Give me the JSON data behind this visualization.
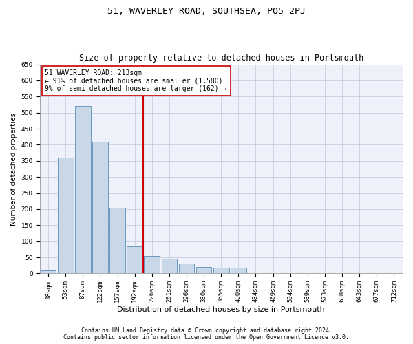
{
  "title": "51, WAVERLEY ROAD, SOUTHSEA, PO5 2PJ",
  "subtitle": "Size of property relative to detached houses in Portsmouth",
  "xlabel": "Distribution of detached houses by size in Portsmouth",
  "ylabel": "Number of detached properties",
  "bar_labels": [
    "18sqm",
    "53sqm",
    "87sqm",
    "122sqm",
    "157sqm",
    "192sqm",
    "226sqm",
    "261sqm",
    "296sqm",
    "330sqm",
    "365sqm",
    "400sqm",
    "434sqm",
    "469sqm",
    "504sqm",
    "539sqm",
    "573sqm",
    "608sqm",
    "643sqm",
    "677sqm",
    "712sqm"
  ],
  "bar_heights": [
    10,
    360,
    520,
    410,
    205,
    85,
    55,
    45,
    30,
    20,
    18,
    18,
    0,
    0,
    0,
    0,
    0,
    2,
    0,
    0,
    2
  ],
  "bar_color": "#c8d8e8",
  "bar_edge_color": "#5b8db8",
  "grid_color": "#c8cce0",
  "background_color": "#eef1f9",
  "vline_color": "#cc0000",
  "annotation_text": "51 WAVERLEY ROAD: 213sqm\n← 91% of detached houses are smaller (1,580)\n9% of semi-detached houses are larger (162) →",
  "annotation_box_color": "#ffffff",
  "annotation_box_edge_color": "#cc0000",
  "ylim": [
    0,
    650
  ],
  "yticks": [
    0,
    50,
    100,
    150,
    200,
    250,
    300,
    350,
    400,
    450,
    500,
    550,
    600,
    650
  ],
  "footer_line1": "Contains HM Land Registry data © Crown copyright and database right 2024.",
  "footer_line2": "Contains public sector information licensed under the Open Government Licence v3.0.",
  "title_fontsize": 9.5,
  "subtitle_fontsize": 8.5,
  "xlabel_fontsize": 8,
  "ylabel_fontsize": 7.5,
  "tick_fontsize": 6.5,
  "annotation_fontsize": 7,
  "footer_fontsize": 6
}
